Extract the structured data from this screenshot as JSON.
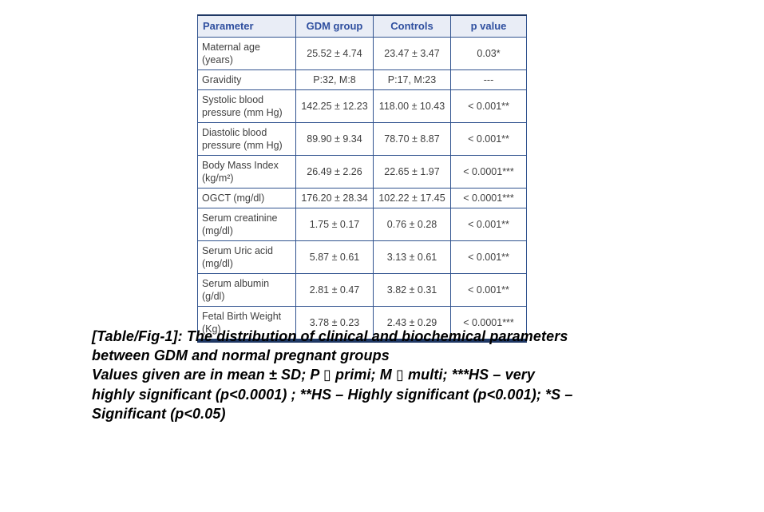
{
  "table": {
    "columns": [
      "Parameter",
      "GDM group",
      "Controls",
      "p value"
    ],
    "rows": [
      [
        "Maternal age (years)",
        "25.52 ± 4.74",
        "23.47 ± 3.47",
        "0.03*"
      ],
      [
        "Gravidity",
        "P:32, M:8",
        "P:17, M:23",
        "---"
      ],
      [
        "Systolic blood pressure (mm Hg)",
        "142.25 ± 12.23",
        "118.00 ± 10.43",
        "< 0.001**"
      ],
      [
        "Diastolic blood pressure (mm Hg)",
        "89.90 ± 9.34",
        "78.70 ± 8.87",
        "< 0.001**"
      ],
      [
        "Body Mass Index (kg/m²)",
        "26.49 ± 2.26",
        "22.65 ± 1.97",
        "< 0.0001***"
      ],
      [
        "OGCT (mg/dl)",
        "176.20 ± 28.34",
        "102.22 ± 17.45",
        "< 0.0001***"
      ],
      [
        "Serum creatinine (mg/dl)",
        "1.75 ± 0.17",
        "0.76 ± 0.28",
        "< 0.001**"
      ],
      [
        "Serum Uric acid (mg/dl)",
        "5.87 ± 0.61",
        "3.13 ± 0.61",
        "< 0.001**"
      ],
      [
        "Serum albumin (g/dl)",
        "2.81 ± 0.47",
        "3.82 ± 0.31",
        "< 0.001**"
      ],
      [
        "Fetal Birth Weight (Kg)",
        "3.78 ± 0.23",
        "2.43 ± 0.29",
        "< 0.0001***"
      ]
    ]
  },
  "caption": {
    "lines": [
      "[Table/Fig-1]: The distribution of clinical and biochemical parameters",
      "between GDM and normal pregnant groups",
      "Values given are in mean ± SD; P ▯ primi; M ▯ multi; ***HS – very",
      "highly significant (p<0.0001) ; **HS – Highly significant (p<0.001); *S –",
      "Significant (p<0.05)"
    ]
  },
  "colors": {
    "table_heavy_border": "#1f3864",
    "table_grid_border": "#31538f",
    "header_bg": "#e9edf6",
    "header_text": "#2f4f9f",
    "body_text": "#3f3f3f"
  }
}
